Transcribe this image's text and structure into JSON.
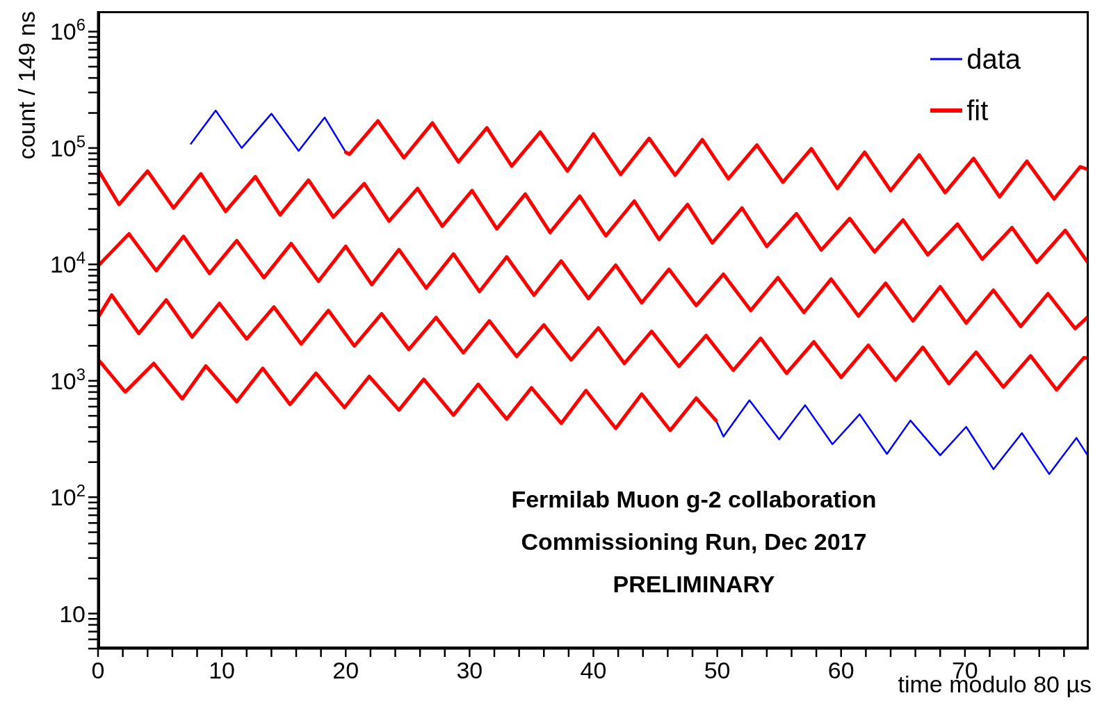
{
  "chart_data": {
    "type": "line",
    "xlabel": "time modulo 80 µs",
    "ylabel": "count / 149 ns",
    "log": "y",
    "grid": false,
    "legend": "top right",
    "marker": "none",
    "line_style": "solid",
    "xlim": [
      0,
      80
    ],
    "xticks": [
      0,
      {
        "value": 2,
        "label": null
      },
      {
        "value": 4,
        "label": null
      },
      {
        "value": 6,
        "label": null
      },
      {
        "value": 8,
        "label": null
      },
      10,
      {
        "value": 12,
        "label": null
      },
      {
        "value": 14,
        "label": null
      },
      {
        "value": 16,
        "label": null
      },
      {
        "value": 18,
        "label": null
      },
      20,
      {
        "value": 22,
        "label": null
      },
      {
        "value": 24,
        "label": null
      },
      {
        "value": 26,
        "label": null
      },
      {
        "value": 28,
        "label": null
      },
      30,
      {
        "value": 32,
        "label": null
      },
      {
        "value": 34,
        "label": null
      },
      {
        "value": 36,
        "label": null
      },
      {
        "value": 38,
        "label": null
      },
      40,
      {
        "value": 42,
        "label": null
      },
      {
        "value": 44,
        "label": null
      },
      {
        "value": 46,
        "label": null
      },
      {
        "value": 48,
        "label": null
      },
      50,
      {
        "value": 52,
        "label": null
      },
      {
        "value": 54,
        "label": null
      },
      {
        "value": 56,
        "label": null
      },
      {
        "value": 58,
        "label": null
      },
      60,
      {
        "value": 62,
        "label": null
      },
      {
        "value": 64,
        "label": null
      },
      {
        "value": 66,
        "label": null
      },
      {
        "value": 68,
        "label": null
      },
      70,
      {
        "value": 72,
        "label": null
      },
      {
        "value": 74,
        "label": null
      },
      {
        "value": 76,
        "label": null
      },
      {
        "value": 78,
        "label": null
      }
    ],
    "ylim": [
      5,
      1500000
    ],
    "yticks": [
      {
        "value": 5,
        "label": null
      },
      {
        "value": 6,
        "label": null
      },
      {
        "value": 7,
        "label": null
      },
      {
        "value": 8,
        "label": null
      },
      {
        "value": 9,
        "label": null
      },
      10,
      {
        "value": 20,
        "label": null
      },
      {
        "value": 30,
        "label": null
      },
      {
        "value": 40,
        "label": null
      },
      {
        "value": 50,
        "label": null
      },
      {
        "value": 60,
        "label": null
      },
      {
        "value": 70,
        "label": null
      },
      {
        "value": 80,
        "label": null
      },
      {
        "value": 90,
        "label": null
      },
      {
        "value": 100,
        "label": "10$^{2}$"
      },
      {
        "value": 200,
        "label": null
      },
      {
        "value": 300,
        "label": null
      },
      {
        "value": 400,
        "label": null
      },
      {
        "value": 500,
        "label": null
      },
      {
        "value": 600,
        "label": null
      },
      {
        "value": 700,
        "label": null
      },
      {
        "value": 800,
        "label": null
      },
      {
        "value": 900,
        "label": null
      },
      {
        "value": 1000,
        "label": "10$^{3}$"
      },
      {
        "value": 2000,
        "label": null
      },
      {
        "value": 3000,
        "label": null
      },
      {
        "value": 4000,
        "label": null
      },
      {
        "value": 5000,
        "label": null
      },
      {
        "value": 6000,
        "label": null
      },
      {
        "value": 7000,
        "label": null
      },
      {
        "value": 8000,
        "label": null
      },
      {
        "value": 9000,
        "label": null
      },
      {
        "value": 10000,
        "label": "10$^{4}$"
      },
      {
        "value": 20000,
        "label": null
      },
      {
        "value": 30000,
        "label": null
      },
      {
        "value": 40000,
        "label": null
      },
      {
        "value": 50000,
        "label": null
      },
      {
        "value": 60000,
        "label": null
      },
      {
        "value": 70000,
        "label": null
      },
      {
        "value": 80000,
        "label": null
      },
      {
        "value": 90000,
        "label": null
      },
      {
        "value": 100000,
        "label": "10$^{5}$"
      },
      {
        "value": 200000,
        "label": null
      },
      {
        "value": 300000,
        "label": null
      },
      {
        "value": 400000,
        "label": null
      },
      {
        "value": 500000,
        "label": null
      },
      {
        "value": 600000,
        "label": null
      },
      {
        "value": 700000,
        "label": null
      },
      {
        "value": 800000,
        "label": null
      },
      {
        "value": 900000,
        "label": null
      },
      {
        "value": 1000000,
        "label": "10$^{6}$"
      }
    ],
    "annotations": [
      "Fermilab Muon g-2 collaboration",
      "Commissioning Run, Dec 2017",
      "PRELIMINARY"
    ],
    "series": [
      {
        "name": "data",
        "color": "#0000ff",
        "x": [
          7.5,
          9.5,
          11.6,
          14,
          16.2,
          18.3,
          20,
          null,
          49.9,
          50.5,
          52.6,
          55,
          57.1,
          59.3,
          61.5,
          63.7,
          65.6,
          68,
          70.1,
          72.3,
          74.6,
          76.8,
          79,
          79.9
        ],
        "values": [
          109000,
          210000,
          100000,
          197000,
          94600,
          183000,
          92000,
          null,
          456,
          332,
          680,
          314,
          617,
          285,
          516,
          235,
          456,
          229,
          402,
          174,
          355,
          158,
          323,
          229
        ]
      },
      {
        "name": "fit",
        "color": "#ff0000",
        "x": [
          20,
          20.3,
          22.6,
          24.7,
          27,
          29.1,
          31.4,
          33.4,
          35.7,
          37.9,
          40,
          42.2,
          44.5,
          46.6,
          48.8,
          50.9,
          53.2,
          55.3,
          57.6,
          59.7,
          61.9,
          64,
          66.3,
          68.4,
          70.7,
          72.8,
          75,
          77.2,
          79.3,
          80,
          null,
          0,
          1.7,
          4,
          6.1,
          8.3,
          10.3,
          12.7,
          14.7,
          17,
          19,
          21.5,
          23.5,
          25.8,
          27.8,
          30.2,
          32.2,
          34.5,
          36.5,
          38.9,
          41,
          43.3,
          45.3,
          47.6,
          49.6,
          52,
          54,
          56.4,
          58.4,
          60.7,
          62.7,
          65,
          67,
          69.4,
          71.4,
          73.8,
          75.8,
          78.1,
          80,
          null,
          0,
          2.5,
          4.7,
          6.9,
          9,
          11.2,
          13.4,
          15.6,
          17.8,
          20,
          22.1,
          24.3,
          26.5,
          28.7,
          30.8,
          33,
          35.2,
          37.4,
          39.6,
          41.8,
          43.9,
          46.1,
          48.3,
          50.5,
          52.7,
          54.9,
          57,
          59.2,
          61.4,
          63.6,
          65.8,
          68,
          70.1,
          72.3,
          74.5,
          76.7,
          78.9,
          80,
          null,
          0,
          1.1,
          3.3,
          5.5,
          7.6,
          9.8,
          12,
          14.2,
          16.4,
          18.6,
          20.7,
          22.9,
          25.1,
          27.3,
          29.5,
          31.6,
          33.8,
          36,
          38.2,
          40.4,
          42.5,
          44.7,
          46.9,
          49.1,
          51.3,
          53.5,
          55.6,
          57.8,
          60,
          62.2,
          64.4,
          66.6,
          68.7,
          70.9,
          73.1,
          75.3,
          77.4,
          79.6,
          80,
          null,
          0,
          2.2,
          4.5,
          6.8,
          8.7,
          11.2,
          13.3,
          15.5,
          17.6,
          19.9,
          21.9,
          24.3,
          26.3,
          28.7,
          30.7,
          33,
          35,
          37.4,
          39.4,
          41.8,
          43.9,
          46.2,
          48.3,
          49.9
        ],
        "values": [
          92000,
          88300,
          171000,
          82400,
          164000,
          75900,
          149000,
          69900,
          137000,
          63400,
          132000,
          59200,
          121000,
          58400,
          118000,
          54500,
          106000,
          50900,
          98600,
          44900,
          92100,
          43100,
          87100,
          41400,
          81300,
          38100,
          76900,
          36500,
          68900,
          65200,
          null,
          65200,
          32700,
          63400,
          30500,
          60000,
          28500,
          56800,
          26600,
          53000,
          25500,
          49500,
          23500,
          44900,
          21300,
          43100,
          20200,
          40200,
          18800,
          38600,
          17600,
          35000,
          16400,
          32700,
          15300,
          30500,
          14300,
          27300,
          13300,
          24800,
          12800,
          24100,
          12100,
          22200,
          11100,
          20700,
          10400,
          19600,
          10100,
          null,
          9700,
          18300,
          8830,
          17400,
          8360,
          16000,
          7690,
          15100,
          7180,
          14300,
          6700,
          13400,
          6260,
          12300,
          5840,
          11600,
          5450,
          10700,
          5090,
          9860,
          4680,
          9080,
          4430,
          8240,
          4020,
          7690,
          3860,
          7480,
          3600,
          6890,
          3270,
          6430,
          3140,
          6000,
          2930,
          5600,
          2810,
          3600,
          null,
          3500,
          5450,
          2550,
          4950,
          2380,
          4620,
          2290,
          4310,
          2070,
          4020,
          1990,
          3760,
          1860,
          3500,
          1740,
          3270,
          1620,
          3020,
          1510,
          2850,
          1410,
          2660,
          1330,
          2450,
          1230,
          2320,
          1160,
          2160,
          1070,
          2020,
          1010,
          1940,
          946,
          1760,
          883,
          1640,
          836,
          1580,
          1560,
          null,
          1530,
          802,
          1410,
          699,
          1340,
          662,
          1280,
          626,
          1160,
          589,
          1090,
          560,
          1030,
          507,
          933,
          469,
          871,
          431,
          824,
          390,
          769,
          375,
          709,
          456
        ]
      }
    ]
  }
}
